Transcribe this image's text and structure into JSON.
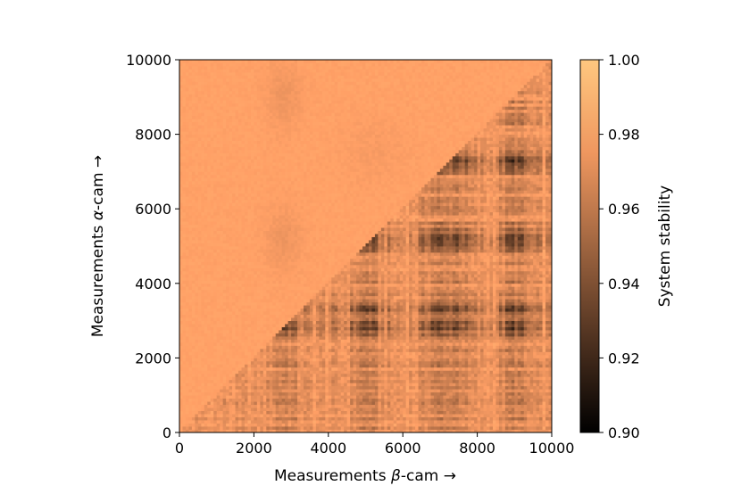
{
  "chart_data": {
    "type": "heatmap",
    "xlabel_prefix": "Measurements ",
    "xlabel_symbol": "β",
    "xlabel_suffix": "-cam  →",
    "ylabel_prefix": "Measurements ",
    "ylabel_symbol": "α",
    "ylabel_suffix": "-cam  →",
    "xlim": [
      0,
      10000
    ],
    "ylim": [
      0,
      10000
    ],
    "x_ticks": [
      0,
      2000,
      4000,
      6000,
      8000,
      10000
    ],
    "y_ticks": [
      0,
      2000,
      4000,
      6000,
      8000,
      10000
    ],
    "colorbar": {
      "label": "System stability",
      "range": [
        0.9,
        1.0
      ],
      "ticks": [
        "0.90",
        "0.92",
        "0.94",
        "0.96",
        "0.98",
        "1.00"
      ],
      "colormap": "copper",
      "color_low": "#000000",
      "color_high": "#ffc77f"
    },
    "structure": {
      "upper_left_triangle_range": [
        0.965,
        0.985
      ],
      "lower_right_triangle_range": [
        0.9,
        0.985
      ],
      "dark_bands_x": [
        2800,
        5000,
        6900,
        7400,
        9000
      ],
      "dark_bands_y": [
        2800,
        3300,
        5200,
        7300
      ]
    }
  }
}
